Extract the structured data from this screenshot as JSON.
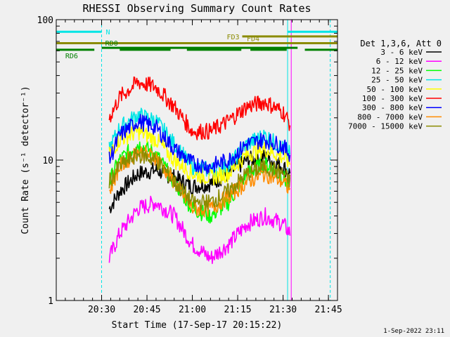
{
  "chart_data": {
    "type": "line",
    "title": "RHESSI Observing Summary Count Rates",
    "xlabel": "Start Time (17-Sep-17 20:15:22)",
    "ylabel": "Count Rate (s⁻¹ detector⁻¹)",
    "yscale": "log",
    "ylim": [
      1,
      100
    ],
    "xlim_minutes": [
      20.25,
      21.8
    ],
    "x_tick_labels": [
      "20:30",
      "20:45",
      "21:00",
      "21:15",
      "21:30",
      "21:45"
    ],
    "x_tick_values": [
      20.5,
      20.75,
      21.0,
      21.25,
      21.5,
      21.75
    ],
    "y_tick_labels": [
      "1",
      "10",
      "100"
    ],
    "y_tick_values": [
      1,
      10,
      100
    ],
    "legend_title": "Det 1,3,6, Att 0",
    "legend_position": "right",
    "series": [
      {
        "name": "3 - 6 keV",
        "color": "#000000",
        "points": [
          [
            20.542,
            4.5
          ],
          [
            20.6,
            6
          ],
          [
            20.7,
            8
          ],
          [
            20.8,
            8.5
          ],
          [
            20.9,
            7.5
          ],
          [
            21.0,
            6.5
          ],
          [
            21.1,
            6.8
          ],
          [
            21.2,
            8
          ],
          [
            21.3,
            10
          ],
          [
            21.4,
            10.5
          ],
          [
            21.5,
            9
          ],
          [
            21.54,
            8
          ]
        ]
      },
      {
        "name": "6 - 12 keV",
        "color": "#ff00ff",
        "points": [
          [
            20.542,
            2
          ],
          [
            20.6,
            3
          ],
          [
            20.7,
            4.5
          ],
          [
            20.8,
            5
          ],
          [
            20.9,
            4
          ],
          [
            21.0,
            2.5
          ],
          [
            21.1,
            2
          ],
          [
            21.2,
            2.5
          ],
          [
            21.3,
            3.5
          ],
          [
            21.4,
            4
          ],
          [
            21.5,
            3.5
          ],
          [
            21.54,
            3
          ]
        ]
      },
      {
        "name": "12 - 25 keV",
        "color": "#00ff00",
        "points": [
          [
            20.542,
            7
          ],
          [
            20.6,
            10
          ],
          [
            20.7,
            13
          ],
          [
            20.8,
            11
          ],
          [
            20.9,
            7
          ],
          [
            21.0,
            4.5
          ],
          [
            21.1,
            4
          ],
          [
            21.2,
            5
          ],
          [
            21.3,
            8
          ],
          [
            21.4,
            9.5
          ],
          [
            21.5,
            7.5
          ],
          [
            21.54,
            6.5
          ]
        ]
      },
      {
        "name": "25 - 50 keV",
        "color": "#00e5e5",
        "points": [
          [
            20.542,
            12
          ],
          [
            20.6,
            17
          ],
          [
            20.7,
            21
          ],
          [
            20.8,
            19
          ],
          [
            20.9,
            13
          ],
          [
            21.0,
            9
          ],
          [
            21.1,
            8.5
          ],
          [
            21.2,
            9
          ],
          [
            21.3,
            13
          ],
          [
            21.4,
            15
          ],
          [
            21.5,
            12
          ],
          [
            21.54,
            11
          ]
        ]
      },
      {
        "name": "50 - 100 keV",
        "color": "#ffff00",
        "points": [
          [
            20.542,
            11
          ],
          [
            20.6,
            14
          ],
          [
            20.7,
            16
          ],
          [
            20.8,
            14
          ],
          [
            20.9,
            10
          ],
          [
            21.0,
            8
          ],
          [
            21.1,
            7.5
          ],
          [
            21.2,
            8
          ],
          [
            21.3,
            11
          ],
          [
            21.4,
            12
          ],
          [
            21.5,
            10.5
          ],
          [
            21.54,
            9.5
          ]
        ]
      },
      {
        "name": "100 - 300 keV",
        "color": "#ff0000",
        "points": [
          [
            20.542,
            20
          ],
          [
            20.6,
            28
          ],
          [
            20.7,
            36
          ],
          [
            20.8,
            33
          ],
          [
            20.9,
            24
          ],
          [
            21.0,
            16
          ],
          [
            21.1,
            16
          ],
          [
            21.2,
            19
          ],
          [
            21.3,
            24
          ],
          [
            21.4,
            26
          ],
          [
            21.5,
            22
          ],
          [
            21.54,
            18
          ]
        ]
      },
      {
        "name": "300 - 800 keV",
        "color": "#0000ff",
        "points": [
          [
            20.542,
            10
          ],
          [
            20.6,
            15
          ],
          [
            20.7,
            19
          ],
          [
            20.8,
            17
          ],
          [
            20.9,
            12
          ],
          [
            21.0,
            9.5
          ],
          [
            21.1,
            9
          ],
          [
            21.2,
            10
          ],
          [
            21.3,
            13
          ],
          [
            21.4,
            14
          ],
          [
            21.5,
            12.5
          ],
          [
            21.54,
            11
          ]
        ]
      },
      {
        "name": "800 - 7000 keV",
        "color": "#ff8c00",
        "points": [
          [
            20.542,
            6
          ],
          [
            20.6,
            9
          ],
          [
            20.7,
            11.5
          ],
          [
            20.8,
            10.5
          ],
          [
            20.9,
            7
          ],
          [
            21.0,
            4.5
          ],
          [
            21.1,
            4.5
          ],
          [
            21.2,
            5.5
          ],
          [
            21.3,
            7
          ],
          [
            21.4,
            8
          ],
          [
            21.5,
            7
          ],
          [
            21.54,
            6
          ]
        ]
      },
      {
        "name": "7000 - 15000 keV",
        "color": "#8b8b00",
        "points": [
          [
            20.542,
            7
          ],
          [
            20.6,
            9
          ],
          [
            20.7,
            11
          ],
          [
            20.8,
            10
          ],
          [
            20.9,
            7
          ],
          [
            21.0,
            5
          ],
          [
            21.1,
            5
          ],
          [
            21.2,
            6
          ],
          [
            21.3,
            8
          ],
          [
            21.4,
            9
          ],
          [
            21.5,
            8
          ],
          [
            21.54,
            7
          ]
        ]
      }
    ],
    "flag_bars": [
      {
        "label": "N",
        "color": "#00e5e5",
        "y": 82,
        "segments": [
          [
            20.25,
            20.5
          ],
          [
            21.525,
            21.8
          ]
        ]
      },
      {
        "label": "FD3",
        "color": "#8b8b00",
        "y": 76,
        "segments": [
          [
            21.275,
            21.8
          ]
        ]
      },
      {
        "label": "FD4",
        "color": "#8b8b00",
        "y": 68,
        "segments": [
          [
            20.25,
            21.8
          ]
        ]
      },
      {
        "label": "RD0",
        "color": "#008000",
        "y": 63,
        "segments": [
          [
            20.5,
            21.58
          ]
        ]
      },
      {
        "label": "RD6",
        "color": "#008000",
        "y": 61,
        "segments": [
          [
            20.25,
            20.46
          ],
          [
            20.6,
            20.88
          ],
          [
            20.97,
            21.27
          ],
          [
            21.32,
            21.52
          ],
          [
            21.62,
            21.8
          ]
        ]
      }
    ],
    "vertical_markers": [
      {
        "x": 20.25,
        "color": "#00e5e5",
        "style": "solid"
      },
      {
        "x": 20.5,
        "color": "#00e5e5",
        "style": "dashed"
      },
      {
        "x": 21.525,
        "color": "#00e5e5",
        "style": "solid"
      },
      {
        "x": 21.545,
        "color": "#ff00ff",
        "style": "solid"
      },
      {
        "x": 21.76,
        "color": "#00e5e5",
        "style": "dashed"
      }
    ]
  },
  "footer": {
    "timestamp": "1-Sep-2022 23:11"
  }
}
